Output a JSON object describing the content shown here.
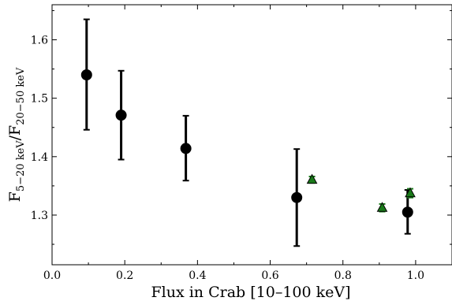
{
  "chart_data": {
    "type": "scatter",
    "xlabel": "Flux in Crab [10–100 keV]",
    "ylabel": {
      "base": "F",
      "num_sub": "5−20 keV",
      "sep": "/F",
      "den_sub": "20−50 keV"
    },
    "xlim": [
      0.0,
      1.1
    ],
    "ylim": [
      1.215,
      1.66
    ],
    "x_ticks": [
      0.0,
      0.2,
      0.4,
      0.6,
      0.8,
      1.0
    ],
    "x_tick_labels": [
      "0.0",
      "0.2",
      "0.4",
      "0.6",
      "0.8",
      "1.0"
    ],
    "y_ticks": [
      1.3,
      1.4,
      1.5,
      1.6
    ],
    "y_tick_labels": [
      "1.3",
      "1.4",
      "1.5",
      "1.6"
    ],
    "grid": false,
    "series": [
      {
        "marker": "circle",
        "color": "#000000",
        "points": [
          {
            "x": 0.095,
            "y": 1.54,
            "ylo": 1.446,
            "yhi": 1.635
          },
          {
            "x": 0.19,
            "y": 1.471,
            "ylo": 1.395,
            "yhi": 1.547
          },
          {
            "x": 0.368,
            "y": 1.414,
            "ylo": 1.359,
            "yhi": 1.47
          },
          {
            "x": 0.673,
            "y": 1.33,
            "ylo": 1.247,
            "yhi": 1.413
          },
          {
            "x": 0.978,
            "y": 1.305,
            "ylo": 1.268,
            "yhi": 1.343
          }
        ]
      },
      {
        "marker": "triangle",
        "color": "#1a7a1a",
        "points": [
          {
            "x": 0.715,
            "y": 1.36,
            "ylo": 1.355,
            "yhi": 1.366
          },
          {
            "x": 0.908,
            "y": 1.312,
            "ylo": 1.306,
            "yhi": 1.319
          },
          {
            "x": 0.985,
            "y": 1.337,
            "ylo": 1.33,
            "yhi": 1.345
          }
        ]
      }
    ]
  }
}
